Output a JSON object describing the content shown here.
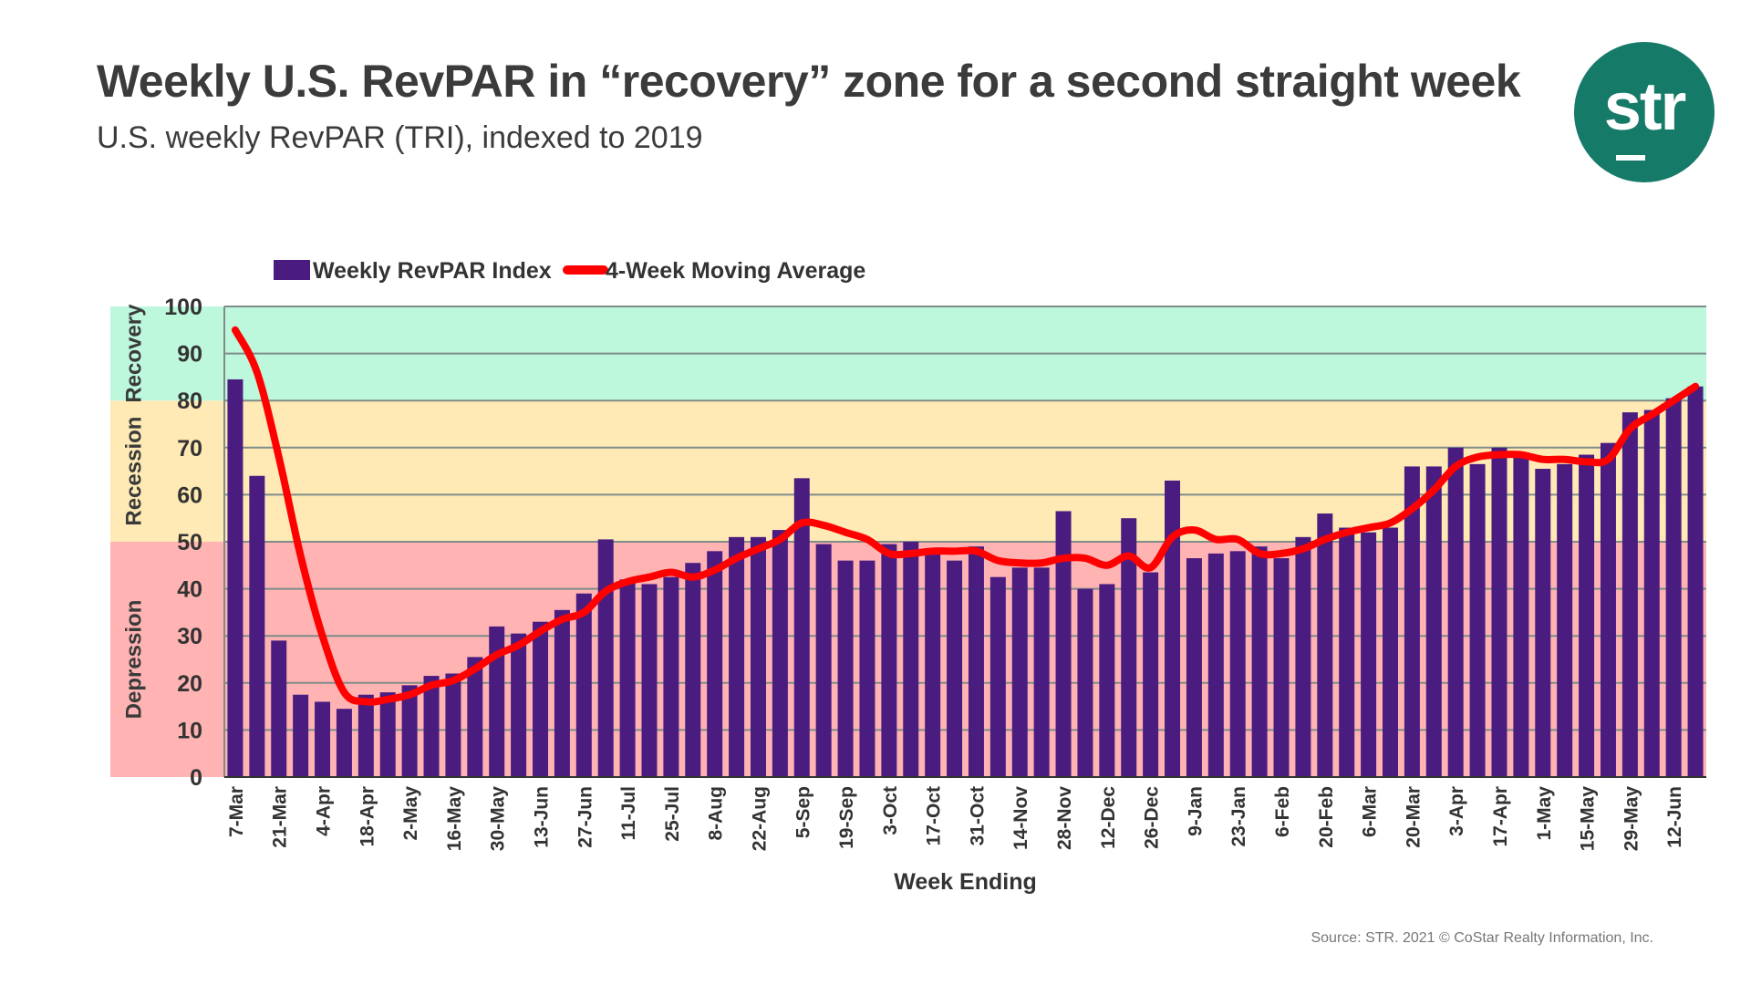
{
  "title": "Weekly U.S. RevPAR in “recovery” zone for a second straight week",
  "subtitle": "U.S. weekly RevPAR (TRI), indexed to 2019",
  "logo_text": "str",
  "source": "Source: STR. 2021 © CoStar Realty Information, Inc.",
  "colors": {
    "bars": "#4B1C80",
    "line": "#FF0000",
    "depression": "#FFB3B3",
    "recession": "#FFEAB5",
    "recovery": "#BDF7DC",
    "logo": "#167A68"
  },
  "chart_data": {
    "type": "bar",
    "xlabel": "Week Ending",
    "ylabel": "",
    "ylim": [
      0,
      100
    ],
    "yticks": [
      0,
      10,
      20,
      30,
      40,
      50,
      60,
      70,
      80,
      90,
      100
    ],
    "grid": true,
    "legend_placement": "top-left",
    "zones": [
      {
        "name": "Depression",
        "range": [
          0,
          50
        ]
      },
      {
        "name": "Recession",
        "range": [
          50,
          80
        ]
      },
      {
        "name": "Recovery",
        "range": [
          80,
          100
        ]
      }
    ],
    "tick_labels": [
      "7-Mar",
      "21-Mar",
      "4-Apr",
      "18-Apr",
      "2-May",
      "16-May",
      "30-May",
      "13-Jun",
      "27-Jun",
      "11-Jul",
      "25-Jul",
      "8-Aug",
      "22-Aug",
      "5-Sep",
      "19-Sep",
      "3-Oct",
      "17-Oct",
      "31-Oct",
      "14-Nov",
      "28-Nov",
      "12-Dec",
      "26-Dec",
      "9-Jan",
      "23-Jan",
      "6-Feb",
      "20-Feb",
      "6-Mar",
      "20-Mar",
      "3-Apr",
      "17-Apr",
      "1-May",
      "15-May",
      "29-May",
      "12-Jun"
    ],
    "tick_every": 2,
    "series": [
      {
        "name": "Weekly RevPAR Index",
        "type": "bar",
        "values": [
          84.5,
          64,
          29,
          17.5,
          16,
          14.5,
          17.5,
          18,
          19.5,
          21.5,
          22,
          25.5,
          32,
          30.5,
          33,
          35.5,
          39,
          50.5,
          42,
          41,
          42.5,
          45.5,
          48,
          51,
          51,
          52.5,
          63.5,
          49.5,
          46,
          46,
          49.5,
          50,
          47.5,
          46,
          49,
          42.5,
          44.5,
          44.5,
          56.5,
          40,
          41,
          55,
          43.5,
          63,
          46.5,
          47.5,
          48,
          49,
          46.5,
          51,
          56,
          53,
          52,
          53,
          66,
          66,
          70,
          66.5,
          70,
          69,
          65.5,
          66.5,
          68.5,
          71,
          77.5,
          78,
          80.5,
          83
        ]
      },
      {
        "name": "4-Week Moving Average",
        "type": "line",
        "values": [
          95,
          86,
          68,
          47,
          30,
          18,
          16,
          16.5,
          17.5,
          19.5,
          20.5,
          23,
          26,
          28,
          31,
          33.5,
          35,
          39.5,
          41.5,
          42.5,
          43.5,
          42.5,
          44,
          46.5,
          48.5,
          50.5,
          54,
          53.5,
          52,
          50.5,
          47.5,
          47.5,
          48,
          48,
          48,
          46,
          45.5,
          45.5,
          46.5,
          46.5,
          45,
          47,
          44.5,
          51,
          52.5,
          50.5,
          50.5,
          47.5,
          47.5,
          48.5,
          50.5,
          52,
          53,
          54,
          57,
          61,
          66,
          68,
          68.5,
          68.5,
          67.5,
          67.5,
          67,
          67.5,
          74,
          77,
          80,
          83
        ]
      }
    ]
  }
}
